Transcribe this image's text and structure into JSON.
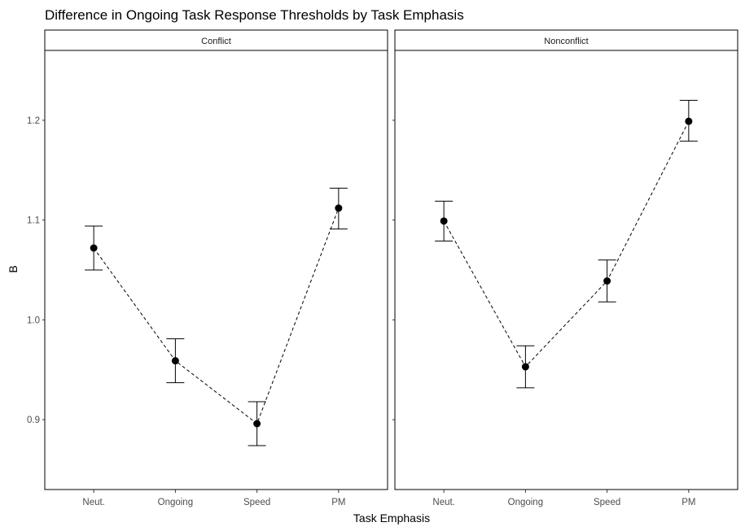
{
  "chart_data": {
    "type": "line",
    "title": "Difference in Ongoing Task Response Thresholds by Task Emphasis",
    "xlabel": "Task Emphasis",
    "ylabel": "B",
    "categories": [
      "Neut.",
      "Ongoing",
      "Speed",
      "PM"
    ],
    "ylim": [
      0.83,
      1.27
    ],
    "yticks": [
      0.9,
      1.0,
      1.1,
      1.2
    ],
    "ytick_labels": [
      "0.9",
      "1.0",
      "1.1",
      "1.2"
    ],
    "grid": false,
    "line_style": "dashed",
    "point_color": "#000000",
    "line_color": "#000000",
    "panels": [
      {
        "name": "Conflict",
        "values": [
          1.072,
          0.959,
          0.896,
          1.112
        ],
        "lower": [
          1.05,
          0.937,
          0.874,
          1.091
        ],
        "upper": [
          1.094,
          0.981,
          0.918,
          1.132
        ]
      },
      {
        "name": "Nonconflict",
        "values": [
          1.099,
          0.953,
          1.039,
          1.199
        ],
        "lower": [
          1.079,
          0.932,
          1.018,
          1.179
        ],
        "upper": [
          1.119,
          0.974,
          1.06,
          1.22
        ]
      }
    ]
  }
}
